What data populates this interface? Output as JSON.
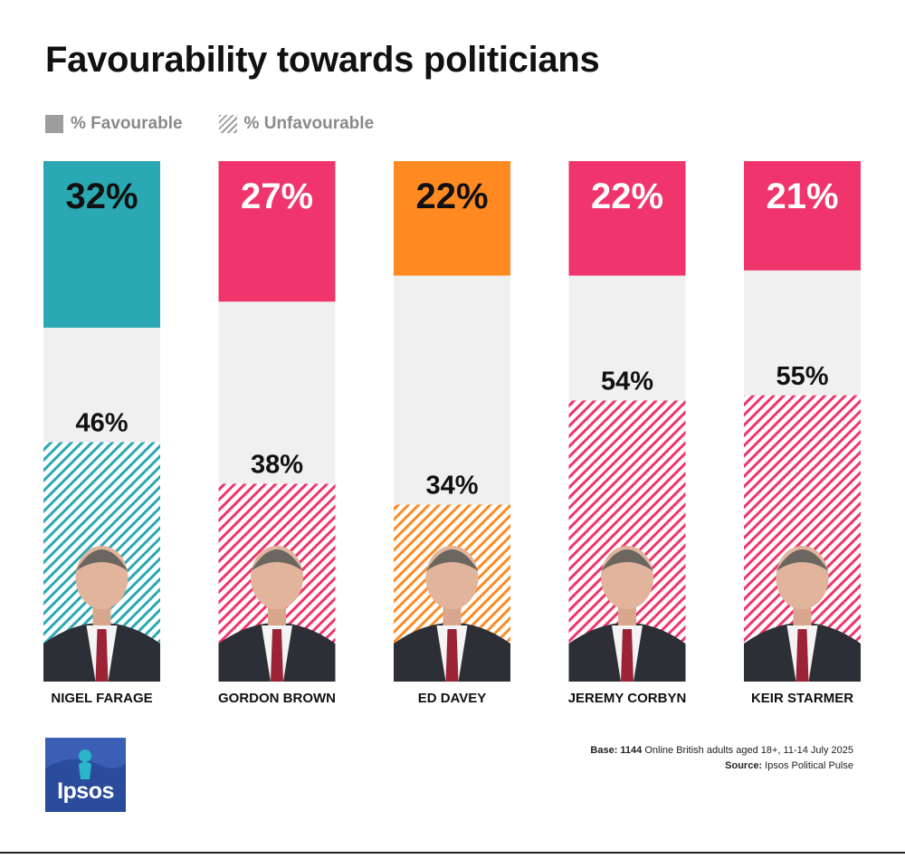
{
  "title": "Favourability towards politicians",
  "legend": {
    "favourable": "% Favourable",
    "unfavourable": "% Unfavourable"
  },
  "chart_data": {
    "type": "bar",
    "title": "Favourability towards politicians",
    "categories": [
      "NIGEL FARAGE",
      "GORDON BROWN",
      "ED DAVEY",
      "JEREMY CORBYN",
      "KEIR STARMER"
    ],
    "series": [
      {
        "name": "% Favourable",
        "values": [
          32,
          27,
          22,
          22,
          21
        ],
        "labels": [
          "32%",
          "27%",
          "22%",
          "22%",
          "21%"
        ]
      },
      {
        "name": "% Unfavourable",
        "values": [
          46,
          38,
          34,
          54,
          55
        ],
        "labels": [
          "46%",
          "38%",
          "34%",
          "54%",
          "55%"
        ]
      }
    ],
    "colors": [
      "#2aa8b3",
      "#f0346c",
      "#ff8a22",
      "#f0346c",
      "#f0346c"
    ],
    "favourable_label_colors": [
      "#111111",
      "#ffffff",
      "#111111",
      "#ffffff",
      "#ffffff"
    ],
    "neutral_color": "#f0f0f0",
    "ylim": [
      0,
      100
    ]
  },
  "footer": {
    "base_label": "Base:",
    "base_n": "1144",
    "base_text": "Online British adults aged 18+,  11-14 July 2025",
    "source_label": "Source:",
    "source_text": "Ipsos Political Pulse"
  },
  "logo": {
    "text": "Ipsos"
  },
  "icons": [
    "person-portrait-icon",
    "ipsos-logo-icon"
  ]
}
